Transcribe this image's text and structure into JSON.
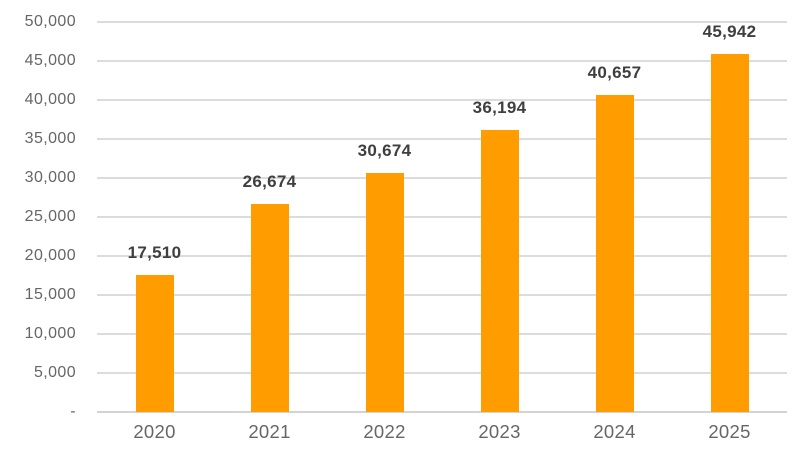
{
  "chart_data": {
    "type": "bar",
    "categories": [
      "2020",
      "2021",
      "2022",
      "2023",
      "2024",
      "2025"
    ],
    "values": [
      17510,
      26674,
      30674,
      36194,
      40657,
      45942
    ],
    "value_labels": [
      "17,510",
      "26,674",
      "30,674",
      "36,194",
      "40,657",
      "45,942"
    ],
    "yticks": [
      {
        "value": 0,
        "label": "-"
      },
      {
        "value": 5000,
        "label": "5,000"
      },
      {
        "value": 10000,
        "label": "10,000"
      },
      {
        "value": 15000,
        "label": "15,000"
      },
      {
        "value": 20000,
        "label": "20,000"
      },
      {
        "value": 25000,
        "label": "25,000"
      },
      {
        "value": 30000,
        "label": "30,000"
      },
      {
        "value": 35000,
        "label": "35,000"
      },
      {
        "value": 40000,
        "label": "40,000"
      },
      {
        "value": 45000,
        "label": "45,000"
      },
      {
        "value": 50000,
        "label": "50,000"
      }
    ],
    "ylim": [
      0,
      50000
    ],
    "ytick_step": 5000,
    "grid": "on",
    "legend": "none",
    "title": "",
    "xlabel": "",
    "ylabel": "",
    "colors": {
      "bar": "#FF9D00",
      "gridline": "#DCDCDC",
      "axis_line": "#D3D3D3",
      "tick_label": "#666666",
      "data_label": "#3F3F3F",
      "background": "#FFFFFF"
    }
  }
}
